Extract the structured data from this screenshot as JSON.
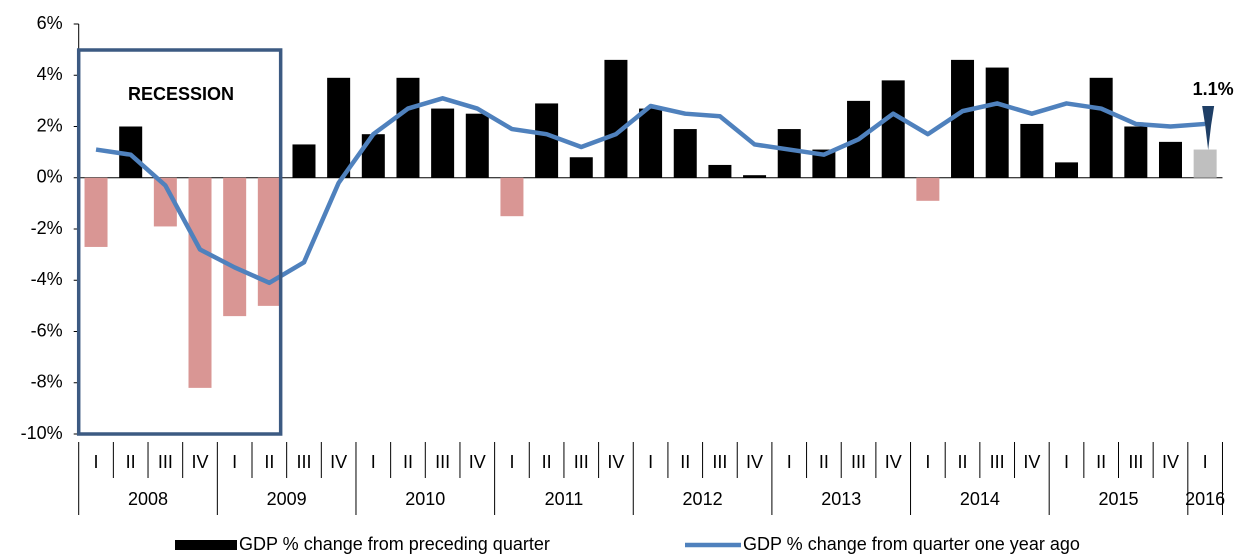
{
  "chart_data": {
    "type": "bar-line",
    "categories": [
      "I",
      "II",
      "III",
      "IV",
      "I",
      "II",
      "III",
      "IV",
      "I",
      "II",
      "III",
      "IV",
      "I",
      "II",
      "III",
      "IV",
      "I",
      "II",
      "III",
      "IV",
      "I",
      "II",
      "III",
      "IV",
      "I",
      "II",
      "III",
      "IV",
      "I",
      "II",
      "III",
      "IV",
      "I"
    ],
    "years": [
      "2008",
      "2009",
      "2010",
      "2011",
      "2012",
      "2013",
      "2014",
      "2015",
      "2016"
    ],
    "series": [
      {
        "name": "GDP % change from preceding quarter",
        "type": "bar",
        "color": "#000000",
        "negative_color": "#d99694",
        "latest_color": "#bfbfbf",
        "values": [
          -2.7,
          2.0,
          -1.9,
          -8.2,
          -5.4,
          -5.0,
          1.3,
          3.9,
          1.7,
          3.9,
          2.7,
          2.5,
          -1.5,
          2.9,
          0.8,
          4.6,
          2.7,
          1.9,
          0.5,
          0.1,
          1.9,
          1.1,
          3.0,
          3.8,
          -0.9,
          4.6,
          4.3,
          2.1,
          0.6,
          3.9,
          2.0,
          1.4,
          1.1
        ]
      },
      {
        "name": "GDP % change from quarter one year ago",
        "type": "line",
        "color": "#4f81bd",
        "values": [
          1.1,
          0.9,
          -0.3,
          -2.8,
          -3.5,
          -4.1,
          -3.3,
          -0.2,
          1.7,
          2.7,
          3.1,
          2.7,
          1.9,
          1.7,
          1.2,
          1.7,
          2.8,
          2.5,
          2.4,
          1.3,
          1.1,
          0.9,
          1.5,
          2.5,
          1.7,
          2.6,
          2.9,
          2.5,
          2.9,
          2.7,
          2.1,
          2.0,
          2.1
        ]
      }
    ],
    "ylim": [
      -10,
      6
    ],
    "yticks": [
      {
        "value": -10,
        "label": "-10%"
      },
      {
        "value": -8,
        "label": "-8%"
      },
      {
        "value": -6,
        "label": "-6%"
      },
      {
        "value": -4,
        "label": "-4%"
      },
      {
        "value": -2,
        "label": "-2%"
      },
      {
        "value": 0,
        "label": "0%"
      },
      {
        "value": 2,
        "label": "2%"
      },
      {
        "value": 4,
        "label": "4%"
      },
      {
        "value": 6,
        "label": "6%"
      }
    ],
    "annotations": [
      "RECESSION",
      "1.1%"
    ],
    "grid": false
  }
}
